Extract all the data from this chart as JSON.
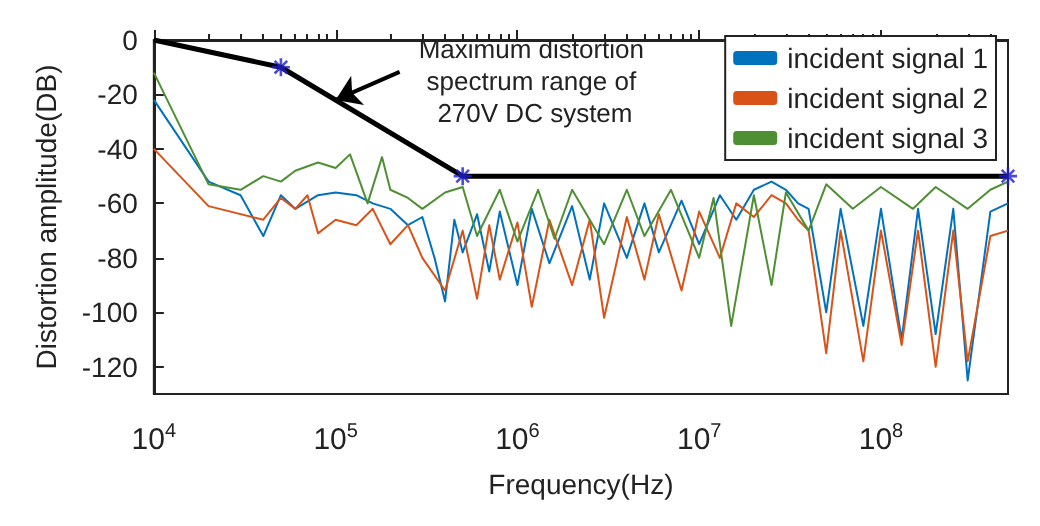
{
  "chart_data": {
    "type": "line",
    "xlabel": "Frequency(Hz)",
    "ylabel": "Distortion amplitude(DB)",
    "log": "x",
    "xlim": [
      10000,
      500000000
    ],
    "ylim": [
      -130,
      0
    ],
    "xticks": [
      {
        "value": 10000,
        "label": "10$^{4}$"
      },
      {
        "value": 100000,
        "label": "10$^{5}$"
      },
      {
        "value": 1000000,
        "label": "10$^{6}$"
      },
      {
        "value": 10000000,
        "label": "10$^{7}$"
      },
      {
        "value": 100000000,
        "label": "10$^{8}$"
      }
    ],
    "yticks": [
      -120,
      -100,
      -80,
      -60,
      -40,
      -20,
      0
    ],
    "grid": false,
    "legend": "top right",
    "marker": "none",
    "line_style": "solid",
    "annotations": [
      {
        "text": "Maximum distortion spectrum range of 270V DC system",
        "x": 100000,
        "y": -22
      }
    ],
    "series": [
      {
        "name": "incident signal 1",
        "color": "#0072bd",
        "x": [
          10000,
          20000,
          30000,
          40000,
          50000,
          60000,
          80000,
          100000,
          130000,
          160000,
          200000,
          250000,
          300000,
          350000,
          400000,
          450000,
          500000,
          600000,
          700000,
          800000,
          1000000,
          1200000,
          1500000,
          2000000,
          2500000,
          3000000,
          4000000,
          5000000,
          6000000,
          8000000,
          10000000,
          13000000,
          16000000,
          20000000,
          25000000,
          30000000,
          35000000,
          40000000,
          50000000,
          60000000,
          80000000,
          100000000,
          130000000,
          160000000,
          200000000,
          250000000,
          300000000,
          400000000,
          500000000
        ],
        "values": [
          -22,
          -52,
          -57,
          -72,
          -57,
          -62,
          -57,
          -56,
          -57,
          -60,
          -62,
          -68,
          -65,
          -80,
          -96,
          -66,
          -78,
          -64,
          -85,
          -63,
          -90,
          -62,
          -82,
          -61,
          -88,
          -60,
          -80,
          -60,
          -78,
          -59,
          -75,
          -57,
          -66,
          -55,
          -52,
          -55,
          -60,
          -62,
          -100,
          -62,
          -105,
          -62,
          -110,
          -62,
          -108,
          -62,
          -125,
          -63,
          -60
        ]
      },
      {
        "name": "incident signal 2",
        "color": "#d95319",
        "x": [
          10000,
          20000,
          40000,
          50000,
          60000,
          70000,
          80000,
          100000,
          130000,
          160000,
          200000,
          250000,
          300000,
          400000,
          500000,
          600000,
          700000,
          800000,
          1000000,
          1200000,
          1500000,
          2000000,
          2500000,
          3000000,
          4000000,
          5000000,
          6000000,
          8000000,
          10000000,
          13000000,
          16000000,
          20000000,
          25000000,
          30000000,
          35000000,
          40000000,
          50000000,
          60000000,
          80000000,
          100000000,
          130000000,
          160000000,
          200000000,
          250000000,
          300000000,
          400000000,
          500000000
        ],
        "values": [
          -40,
          -61,
          -66,
          -58,
          -62,
          -57,
          -71,
          -66,
          -68,
          -62,
          -75,
          -68,
          -80,
          -92,
          -70,
          -95,
          -68,
          -88,
          -67,
          -98,
          -66,
          -90,
          -66,
          -102,
          -65,
          -88,
          -64,
          -92,
          -63,
          -80,
          -60,
          -65,
          -57,
          -60,
          -66,
          -70,
          -115,
          -70,
          -118,
          -70,
          -112,
          -70,
          -120,
          -70,
          -118,
          -72,
          -70
        ]
      },
      {
        "name": "incident signal 3",
        "color": "#4f8f33",
        "x": [
          10000,
          20000,
          30000,
          40000,
          50000,
          60000,
          80000,
          100000,
          120000,
          150000,
          180000,
          200000,
          250000,
          300000,
          400000,
          500000,
          600000,
          800000,
          1000000,
          1300000,
          1600000,
          2000000,
          3000000,
          4000000,
          5000000,
          7000000,
          10000000,
          12000000,
          15000000,
          20000000,
          25000000,
          30000000,
          40000000,
          50000000,
          70000000,
          100000000,
          150000000,
          200000000,
          300000000,
          400000000,
          500000000
        ],
        "values": [
          -12,
          -53,
          -55,
          -50,
          -52,
          -48,
          -45,
          -47,
          -42,
          -60,
          -43,
          -55,
          -58,
          -62,
          -56,
          -54,
          -72,
          -55,
          -74,
          -55,
          -73,
          -55,
          -75,
          -55,
          -72,
          -55,
          -80,
          -58,
          -105,
          -57,
          -90,
          -56,
          -70,
          -53,
          -62,
          -54,
          -62,
          -54,
          -62,
          -55,
          -52
        ]
      },
      {
        "type": "line",
        "color": "#000000",
        "x": [
          10000,
          50000,
          500000,
          500000000
        ],
        "values": [
          0,
          -10,
          -50,
          -50
        ]
      },
      {
        "type": "scatter",
        "color": "#1f1fd0",
        "marker": "cross",
        "x": [
          50000,
          500000,
          500000000
        ],
        "values": [
          -10,
          -50,
          -50
        ]
      }
    ]
  }
}
